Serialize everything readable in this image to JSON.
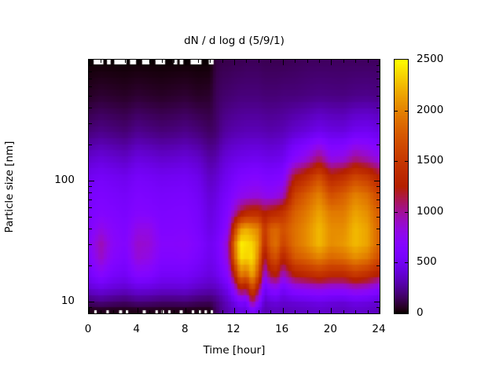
{
  "title": "dN / d log d (5/9/1)",
  "background_color": "#ffffff",
  "x_axis": {
    "label": "Time [hour]",
    "range": [
      0,
      24
    ],
    "major_ticks": [
      0,
      4,
      8,
      12,
      16,
      20,
      24
    ],
    "minor_tick_interval_hours": 1
  },
  "y_axis": {
    "label": "Particle size [nm]",
    "scale": "log",
    "range_nm": [
      8,
      1000
    ],
    "labeled_ticks": [
      10,
      100
    ]
  },
  "colorbar": {
    "min": 0,
    "max": 2500,
    "tick_labels": [
      0,
      500,
      1000,
      1500,
      2000,
      2500
    ],
    "palette": "gnuplot-default-rgbformulae-7-5-15",
    "min_color": "#000000",
    "mid_color": "#c83700",
    "max_color": "#ffff00"
  },
  "chart_data": {
    "type": "heatmap",
    "x_hours": [
      0,
      1,
      2,
      3,
      4,
      5,
      6,
      7,
      8,
      9,
      10,
      10.5,
      11,
      11.5,
      12,
      12.5,
      13,
      13.5,
      14,
      14.5,
      15,
      15.5,
      16,
      17,
      18,
      19,
      20,
      21,
      22,
      23,
      24
    ],
    "y_sizes_nm": [
      1000,
      500,
      250,
      150,
      105,
      75,
      55,
      40,
      30,
      23,
      17,
      13,
      10,
      8
    ],
    "values": [
      [
        0,
        0,
        0,
        0,
        0,
        0,
        0,
        0,
        0,
        0,
        0,
        100,
        120,
        120,
        130,
        130,
        140,
        140,
        140,
        130,
        130,
        130,
        130,
        140,
        150,
        150,
        150,
        150,
        150,
        150,
        150
      ],
      [
        60,
        80,
        70,
        60,
        80,
        70,
        60,
        70,
        80,
        60,
        70,
        140,
        170,
        180,
        190,
        200,
        200,
        200,
        200,
        190,
        190,
        190,
        200,
        200,
        210,
        220,
        215,
        210,
        225,
        230,
        215
      ],
      [
        200,
        230,
        210,
        190,
        240,
        220,
        200,
        210,
        230,
        200,
        160,
        180,
        250,
        280,
        300,
        310,
        320,
        320,
        320,
        310,
        300,
        310,
        320,
        380,
        420,
        480,
        440,
        430,
        500,
        510,
        450
      ],
      [
        380,
        420,
        390,
        360,
        430,
        410,
        380,
        390,
        410,
        370,
        280,
        300,
        380,
        420,
        450,
        470,
        480,
        490,
        490,
        470,
        460,
        470,
        490,
        700,
        850,
        1100,
        800,
        850,
        1050,
        950,
        800
      ],
      [
        500,
        540,
        510,
        480,
        550,
        530,
        500,
        510,
        520,
        470,
        350,
        380,
        450,
        500,
        560,
        620,
        640,
        660,
        660,
        620,
        610,
        630,
        660,
        1250,
        1450,
        1700,
        1350,
        1450,
        1650,
        1550,
        1300
      ],
      [
        560,
        600,
        570,
        540,
        610,
        590,
        560,
        570,
        580,
        520,
        400,
        430,
        520,
        570,
        680,
        760,
        790,
        820,
        830,
        780,
        760,
        800,
        900,
        1600,
        1800,
        2000,
        1700,
        1800,
        2000,
        1900,
        1600
      ],
      [
        600,
        650,
        620,
        580,
        660,
        640,
        600,
        610,
        620,
        560,
        430,
        470,
        560,
        650,
        900,
        1150,
        1300,
        1350,
        1350,
        1200,
        1300,
        1350,
        1450,
        1800,
        1950,
        2150,
        1950,
        1950,
        2150,
        2050,
        1750
      ],
      [
        620,
        800,
        680,
        620,
        800,
        800,
        630,
        640,
        650,
        580,
        450,
        500,
        600,
        750,
        1500,
        2100,
        2200,
        2100,
        2000,
        1500,
        1800,
        1850,
        1700,
        1900,
        2050,
        2250,
        2050,
        2050,
        2250,
        2150,
        1800
      ],
      [
        680,
        950,
        720,
        650,
        880,
        850,
        680,
        680,
        700,
        620,
        500,
        550,
        700,
        900,
        1900,
        2450,
        2400,
        2350,
        2100,
        1400,
        1800,
        1900,
        1600,
        1900,
        2050,
        2250,
        2050,
        2100,
        2250,
        2150,
        1800
      ],
      [
        640,
        900,
        680,
        610,
        850,
        800,
        640,
        640,
        660,
        580,
        480,
        530,
        680,
        850,
        1800,
        2400,
        2350,
        2400,
        2000,
        1100,
        1600,
        1700,
        1300,
        1750,
        1850,
        2000,
        1850,
        1900,
        2050,
        1950,
        1650
      ],
      [
        540,
        700,
        560,
        520,
        680,
        650,
        540,
        540,
        550,
        490,
        430,
        470,
        580,
        700,
        1300,
        2000,
        1900,
        2200,
        1700,
        800,
        1200,
        1300,
        900,
        1300,
        1400,
        1500,
        1400,
        1400,
        1550,
        1450,
        1250
      ],
      [
        400,
        450,
        410,
        380,
        440,
        430,
        400,
        400,
        410,
        360,
        330,
        350,
        420,
        500,
        800,
        1300,
        1200,
        1700,
        1200,
        500,
        700,
        750,
        550,
        750,
        800,
        850,
        800,
        800,
        900,
        850,
        700
      ],
      [
        180,
        220,
        190,
        170,
        210,
        200,
        180,
        180,
        190,
        160,
        150,
        200,
        280,
        350,
        450,
        600,
        550,
        1100,
        700,
        350,
        400,
        420,
        380,
        400,
        420,
        450,
        420,
        400,
        450,
        430,
        380
      ],
      [
        0,
        0,
        0,
        0,
        0,
        0,
        0,
        0,
        0,
        0,
        0,
        150,
        250,
        300,
        350,
        400,
        380,
        500,
        400,
        300,
        320,
        330,
        310,
        330,
        340,
        360,
        340,
        330,
        360,
        350,
        310
      ]
    ],
    "no_data_gaps_hours": {
      "top_row": [
        [
          0.4,
          1.2
        ],
        [
          1.5,
          1.8
        ],
        [
          2.1,
          3.1
        ],
        [
          3.4,
          3.9
        ],
        [
          4.4,
          5.0
        ],
        [
          5.5,
          6.3
        ],
        [
          7.0,
          7.3
        ],
        [
          7.5,
          7.8
        ],
        [
          8.4,
          9.3
        ],
        [
          9.9,
          10.3
        ]
      ],
      "bottom_row": [
        [
          0.45,
          0.65
        ],
        [
          1.45,
          1.65
        ],
        [
          2.5,
          2.75
        ],
        [
          3.05,
          3.25
        ],
        [
          4.45,
          4.7
        ],
        [
          5.5,
          5.7
        ],
        [
          6.0,
          6.2
        ],
        [
          6.55,
          6.75
        ],
        [
          7.5,
          7.75
        ],
        [
          8.5,
          8.7
        ],
        [
          9.05,
          9.25
        ],
        [
          9.55,
          9.75
        ],
        [
          10.05,
          10.25
        ]
      ]
    }
  }
}
